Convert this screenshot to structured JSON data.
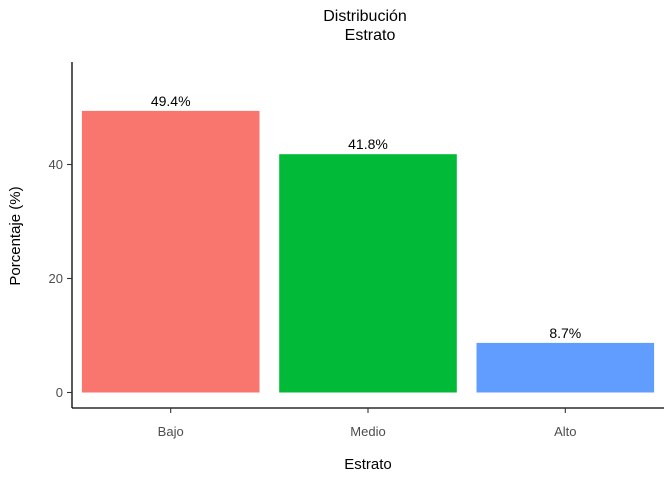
{
  "chart_data": {
    "type": "bar",
    "title": "Distribución",
    "subtitle": "Estrato",
    "xlabel": "Estrato",
    "ylabel": "Porcentaje (%)",
    "categories": [
      "Bajo",
      "Medio",
      "Alto"
    ],
    "values": [
      49.4,
      41.8,
      8.7
    ],
    "value_labels": [
      "49.4%",
      "41.8%",
      "8.7%"
    ],
    "colors": [
      "#F8766D",
      "#00BA38",
      "#619CFF"
    ],
    "ylim": [
      0,
      57
    ],
    "yticks": [
      0,
      20,
      40
    ],
    "ytick_labels": [
      "0",
      "20",
      "40"
    ],
    "grid": false,
    "legend": "none"
  }
}
